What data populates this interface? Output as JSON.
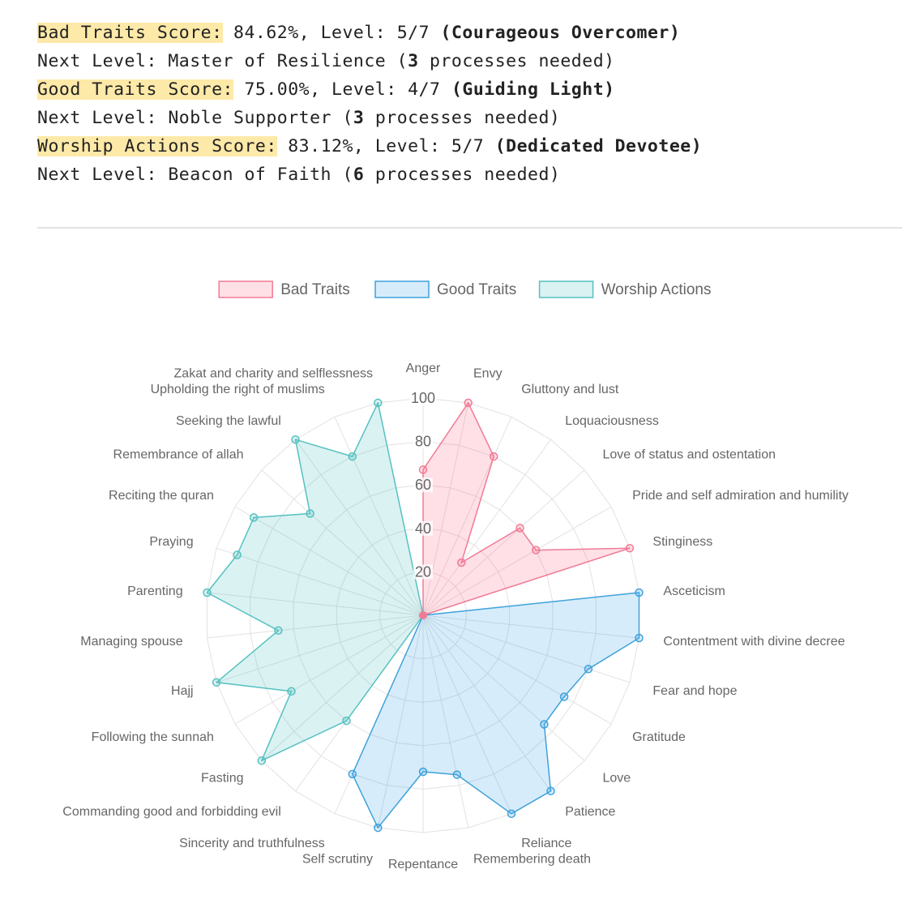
{
  "summary": [
    {
      "label": "Bad Traits Score:",
      "score": "84.62%",
      "level_prefix": "Level:",
      "level": "5/7",
      "title": "(Courageous Overcomer)",
      "next_prefix": "Next Level:",
      "next_level": "Master of Resilience",
      "processes_count": "3",
      "processes_suffix": "processes needed)"
    },
    {
      "label": "Good Traits Score:",
      "score": "75.00%",
      "level_prefix": "Level:",
      "level": "4/7",
      "title": "(Guiding Light)",
      "next_prefix": "Next Level:",
      "next_level": "Noble Supporter",
      "processes_count": "3",
      "processes_suffix": "processes needed)"
    },
    {
      "label": "Worship Actions Score:",
      "score": "83.12%",
      "level_prefix": "Level:",
      "level": "5/7",
      "title": "(Dedicated Devotee)",
      "next_prefix": "Next Level:",
      "next_level": "Beacon of Faith",
      "processes_count": "6",
      "processes_suffix": "processes needed)"
    }
  ],
  "chart_data": {
    "type": "radar",
    "rlim": [
      0,
      100
    ],
    "ticks": [
      20,
      40,
      60,
      80,
      100
    ],
    "grid": true,
    "legend": "top-center",
    "labels": [
      "Anger",
      "Envy",
      "Gluttony and lust",
      "Loquaciousness",
      "Love of status and ostentation",
      "Pride and self admiration and humility",
      "Stinginess",
      "Asceticism",
      "Contentment with divine decree",
      "Fear and hope",
      "Gratitude",
      "Love",
      "Patience",
      "Reliance",
      "Remembering death",
      "Repentance",
      "Self scrutiny",
      "Sincerity and truthfulness",
      "Commanding good and forbidding evil",
      "Fasting",
      "Following the sunnah",
      "Hajj",
      "Managing spouse",
      "Parenting",
      "Praying",
      "Reciting the quran",
      "Remembrance of allah",
      "Seeking the lawful",
      "Upholding the right of muslims",
      "Zakat and charity and selflessness"
    ],
    "series": [
      {
        "name": "Bad Traits",
        "stroke": "#f07b96",
        "fill": "rgba(255,99,132,0.2)",
        "values": [
          67,
          100,
          80,
          30,
          60,
          60,
          100,
          0,
          0,
          0,
          0,
          0,
          0,
          0,
          0,
          0,
          0,
          0,
          0,
          0,
          0,
          0,
          0,
          0,
          0,
          0,
          0,
          0,
          0,
          0
        ]
      },
      {
        "name": "Good Traits",
        "stroke": "#3fa2db",
        "fill": "rgba(54,162,235,0.2)",
        "values": [
          0,
          0,
          0,
          0,
          0,
          0,
          0,
          100,
          100,
          80,
          75,
          75,
          100,
          100,
          75,
          72,
          100,
          80,
          0,
          0,
          0,
          0,
          0,
          0,
          0,
          0,
          0,
          0,
          0,
          0
        ]
      },
      {
        "name": "Worship Actions",
        "stroke": "#55c1c1",
        "fill": "rgba(75,192,192,0.2)",
        "values": [
          0,
          0,
          0,
          0,
          0,
          0,
          0,
          0,
          0,
          0,
          0,
          0,
          0,
          0,
          0,
          0,
          0,
          0,
          60,
          100,
          70,
          100,
          67,
          100,
          90,
          90,
          70,
          100,
          80,
          100
        ]
      }
    ]
  }
}
